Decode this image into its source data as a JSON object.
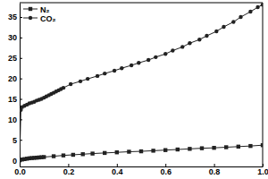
{
  "chart_data": {
    "type": "line",
    "xlim": [
      0,
      1
    ],
    "xticks": [
      {
        "value": 0,
        "label": "0.0"
      },
      {
        "value": 0.2,
        "label": "0.2"
      },
      {
        "value": 0.4,
        "label": "0.4"
      },
      {
        "value": 0.6,
        "label": "0.6"
      },
      {
        "value": 0.8,
        "label": "0.8"
      },
      {
        "value": 1,
        "label": "1.0"
      }
    ],
    "ylim": [
      -1.5,
      38.5
    ],
    "yticks": [
      0,
      5,
      10,
      15,
      20,
      25,
      30,
      35
    ],
    "grid": false,
    "legend": "upper left",
    "series": [
      {
        "name": "N₂",
        "color": "#222222",
        "marker": "square",
        "line_style": "solid",
        "x": [
          0,
          0.01,
          0.02,
          0.03,
          0.04,
          0.05,
          0.06,
          0.07,
          0.08,
          0.09,
          0.1,
          0.14,
          0.18,
          0.22,
          0.26,
          0.3,
          0.35,
          0.4,
          0.45,
          0.5,
          0.55,
          0.6,
          0.65,
          0.7,
          0.75,
          0.8,
          0.85,
          0.9,
          0.95,
          1.0
        ],
        "values": [
          0,
          0.2,
          0.3,
          0.4,
          0.5,
          0.55,
          0.6,
          0.65,
          0.7,
          0.75,
          0.8,
          1.0,
          1.2,
          1.35,
          1.5,
          1.65,
          1.8,
          1.95,
          2.1,
          2.2,
          2.35,
          2.5,
          2.65,
          2.8,
          2.95,
          3.05,
          3.2,
          3.35,
          3.5,
          3.7
        ]
      },
      {
        "name": "CO₂",
        "color": "#222222",
        "marker": "circle",
        "line_style": "solid",
        "x": [
          0,
          0.005,
          0.01,
          0.02,
          0.03,
          0.04,
          0.05,
          0.06,
          0.07,
          0.08,
          0.09,
          0.1,
          0.11,
          0.12,
          0.13,
          0.14,
          0.15,
          0.16,
          0.17,
          0.18,
          0.21,
          0.25,
          0.28,
          0.32,
          0.35,
          0.39,
          0.42,
          0.46,
          0.49,
          0.53,
          0.56,
          0.6,
          0.63,
          0.67,
          0.7,
          0.74,
          0.77,
          0.81,
          0.84,
          0.88,
          0.91,
          0.95,
          0.98,
          1.0
        ],
        "values": [
          0,
          12.3,
          13.0,
          13.3,
          13.6,
          13.9,
          14.1,
          14.3,
          14.6,
          14.8,
          15.0,
          15.3,
          15.6,
          15.9,
          16.2,
          16.5,
          16.8,
          17.1,
          17.4,
          17.7,
          18.6,
          19.3,
          19.9,
          20.6,
          21.2,
          21.9,
          22.5,
          23.2,
          23.8,
          24.5,
          25.2,
          26.0,
          26.8,
          27.7,
          28.6,
          29.5,
          30.4,
          31.5,
          32.6,
          33.8,
          35.0,
          36.3,
          37.4,
          38.0
        ]
      }
    ]
  }
}
